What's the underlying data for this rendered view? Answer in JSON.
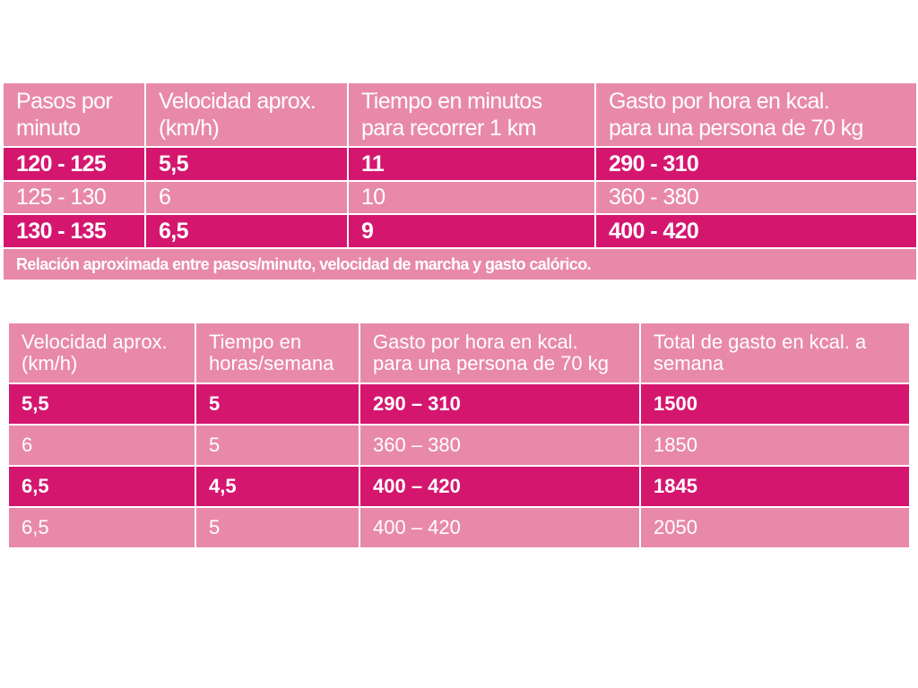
{
  "table1": {
    "headers": [
      "Pasos por minuto",
      "Velocidad aprox. (km/h)",
      "Tiempo en minutos para recorrer 1 km",
      "Gasto por hora en kcal. para una persona de 70 kg"
    ],
    "header_lines": [
      [
        "Pasos por",
        "minuto"
      ],
      [
        "Velocidad aprox.",
        "(km/h)"
      ],
      [
        "Tiempo en minutos",
        "para recorrer 1 km"
      ],
      [
        "Gasto por hora en kcal.",
        "para una persona de 70 kg"
      ]
    ],
    "rows": [
      [
        "120 - 125",
        "5,5",
        "11",
        "290 - 310"
      ],
      [
        "125 - 130",
        "6",
        "10",
        "360 - 380"
      ],
      [
        "130 - 135",
        "6,5",
        "9",
        "400 - 420"
      ]
    ],
    "caption": "Relación aproximada entre pasos/minuto, velocidad de marcha y gasto calórico."
  },
  "table2": {
    "header_lines": [
      [
        "Velocidad aprox.",
        "(km/h)"
      ],
      [
        "Tiempo en",
        "horas/semana"
      ],
      [
        "Gasto por hora en kcal.",
        "para una persona de 70 kg"
      ],
      [
        "Total de gasto en kcal. a",
        "semana"
      ]
    ],
    "rows": [
      [
        "5,5",
        "5",
        "290 – 310",
        "1500"
      ],
      [
        "6",
        "5",
        "360 – 380",
        "1850"
      ],
      [
        "6,5",
        "4,5",
        "400 – 420",
        "1845"
      ],
      [
        "6,5",
        "5",
        "400 – 420",
        "2050"
      ]
    ]
  },
  "colors": {
    "dark_row": "#d4166f",
    "light_row": "#e889aa",
    "text": "#ffffff"
  }
}
